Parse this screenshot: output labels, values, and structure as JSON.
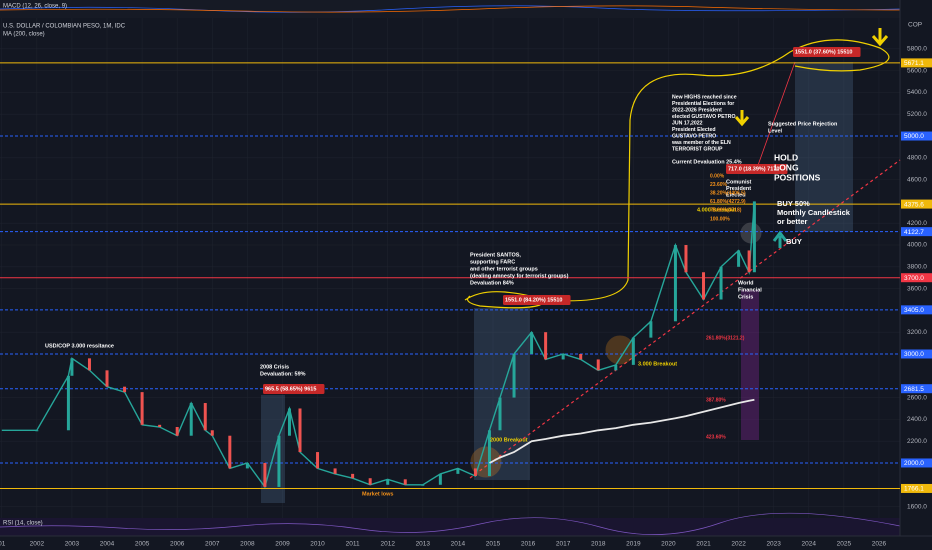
{
  "header": {
    "macd": "MACD (12, 26, close, 9)",
    "symbol": "U.S. DOLLAR / COLOMBIAN PESO, 1M, IDC",
    "rsi": "RSI (14, close)",
    "currency": "COP"
  },
  "chart_data": {
    "type": "line",
    "x": [
      2001.0,
      2002.0,
      2002.9,
      2003.0,
      2003.5,
      2004.0,
      2004.5,
      2005.0,
      2005.5,
      2006.0,
      2006.4,
      2006.8,
      2007.0,
      2007.5,
      2008.0,
      2008.5,
      2008.9,
      2009.2,
      2009.5,
      2010.0,
      2010.5,
      2011.0,
      2011.5,
      2012.0,
      2012.5,
      2013.0,
      2013.5,
      2014.0,
      2014.5,
      2014.9,
      2015.2,
      2015.6,
      2016.1,
      2016.5,
      2017.0,
      2017.5,
      2018.0,
      2018.5,
      2019.0,
      2019.5,
      2020.2,
      2020.5,
      2021.0,
      2021.5,
      2022.0,
      2022.3,
      2022.45
    ],
    "series": [
      {
        "name": "U.S. DOLLAR / COLOMBIAN PESO, 1M, IDC",
        "color": "#26a69a",
        "values": [
          2300,
          2300,
          2800,
          2960,
          2850,
          2700,
          2650,
          2350,
          2330,
          2250,
          2550,
          2300,
          2250,
          1950,
          2000,
          1780,
          2250,
          2500,
          2100,
          1950,
          1900,
          1860,
          1800,
          1850,
          1800,
          1800,
          1900,
          1950,
          1880,
          2300,
          2600,
          3000,
          3200,
          2950,
          3000,
          2950,
          2850,
          2900,
          3150,
          3300,
          4000,
          3750,
          3500,
          3800,
          3950,
          3750,
          4400
        ]
      },
      {
        "name": "MA (200, close)",
        "color": "#e8e8e8",
        "values": [
          null,
          null,
          null,
          null,
          null,
          null,
          null,
          null,
          null,
          null,
          null,
          null,
          null,
          null,
          null,
          null,
          null,
          null,
          null,
          null,
          null,
          null,
          null,
          null,
          null,
          null,
          null,
          null,
          null,
          2000,
          2050,
          2100,
          2200,
          2220,
          2250,
          2270,
          2300,
          2320,
          2350,
          2370,
          2410,
          2430,
          2470,
          2510,
          2550,
          2570,
          2580
        ]
      }
    ],
    "xlim": [
      2000.95,
      2026.6
    ],
    "xticks": [
      {
        "value": 2001,
        "label": "01"
      },
      2002,
      2003,
      2004,
      2005,
      2006,
      2007,
      2008,
      2009,
      2010,
      2011,
      2012,
      2013,
      2014,
      2015,
      2016,
      2017,
      2018,
      2019,
      2020,
      2021,
      2022,
      2023,
      2024,
      2025,
      2026
    ],
    "ylim": [
      1495,
      6083
    ],
    "yticks": [
      {
        "value": 1600,
        "label": "1600.0"
      },
      {
        "value": 2200,
        "label": "2200.0"
      },
      {
        "value": 2400,
        "label": "2400.0"
      },
      {
        "value": 2600,
        "label": "2600.0"
      },
      {
        "value": 3200,
        "label": "3200.0"
      },
      {
        "value": 3600,
        "label": "3600.0"
      },
      {
        "value": 3800,
        "label": "3800.0"
      },
      {
        "value": 4000,
        "label": "4000.0"
      },
      {
        "value": 4200,
        "label": "4200.0"
      },
      {
        "value": 4600,
        "label": "4600.0"
      },
      {
        "value": 4800,
        "label": "4800.0"
      },
      {
        "value": 5200,
        "label": "5200.0"
      },
      {
        "value": 5400,
        "label": "5400.0"
      },
      {
        "value": 5600,
        "label": "5600.0"
      },
      {
        "value": 5800,
        "label": "5800.0"
      }
    ],
    "levels": [
      {
        "value": 5671.1,
        "label": "5671.1",
        "color": "#f0b90b"
      },
      {
        "value": 5000,
        "label": "5000.0",
        "color": "#2962ff"
      },
      {
        "value": 4375.6,
        "label": "4375.6",
        "color": "#f0b90b"
      },
      {
        "value": 4122.7,
        "label": "4122.7",
        "color": "#2962ff"
      },
      {
        "value": 3700,
        "label": "3700.0",
        "color": "#f23645"
      },
      {
        "value": 3405,
        "label": "3405.0",
        "color": "#2962ff"
      },
      {
        "value": 3000,
        "label": "3000.0",
        "color": "#2962ff"
      },
      {
        "value": 2681.5,
        "label": "2681.5",
        "color": "#2962ff"
      },
      {
        "value": 2000,
        "label": "2000.0",
        "color": "#2962ff"
      },
      {
        "value": 1766.1,
        "label": "1766.1",
        "color": "#f0b90b"
      }
    ],
    "annotations": [
      {
        "lines": [
          "USD/COP 3.000 ressitance"
        ],
        "color": "#ffffff"
      },
      {
        "lines": [
          "2008 Crisis",
          "Devaluation: 59%"
        ],
        "color": "#ffffff"
      },
      {
        "lines": [
          "965.5 (58.65%) 9615"
        ],
        "color": "#ffffff"
      },
      {
        "lines": [
          "President SANTOS,",
          "supporting FARC",
          "and other terrorist groups",
          "(dealing amnesty for terrorist groups)",
          "Devaluation 84%"
        ],
        "color": "#ffffff"
      },
      {
        "lines": [
          "1551.0 (84.20%) 15510"
        ],
        "color": "#ffffff"
      },
      {
        "lines": [
          "2000 Breakout"
        ],
        "color": "#f0d000"
      },
      {
        "lines": [
          "3.000 Breakout"
        ],
        "color": "#f0d000"
      },
      {
        "lines": [
          "Market lows"
        ],
        "color": "#f7931a"
      },
      {
        "lines": [
          "New HIGHS reached since",
          "Presidential Elections for",
          "2022-2026 President",
          "elected GUSTAVO PETRO",
          "JUN 17,2022",
          "President Elected",
          "GUSTAVO PETRO",
          "was member of the ELN",
          "TERRORIST GROUP"
        ],
        "color": "#ffffff"
      },
      {
        "lines": [
          "Current Devaluation 25.4%"
        ],
        "color": "#ffffff"
      },
      {
        "lines": [
          "Comunist",
          "President",
          "Elected"
        ],
        "color": "#ffffff"
      },
      {
        "lines": [
          "4.000 Breakout"
        ],
        "color": "#f0d000"
      },
      {
        "lines": [
          "717.0 (18.39%) 7170"
        ],
        "color": "#ffffff"
      },
      {
        "lines": [
          "HOLD",
          "LONG",
          "POSITIONS"
        ],
        "color": "#ffffff"
      },
      {
        "lines": [
          "BUY 50%",
          "Monthly Candlestick",
          "or better"
        ],
        "color": "#ffffff"
      },
      {
        "lines": [
          "BUY"
        ],
        "color": "#ffffff"
      },
      {
        "lines": [
          "World",
          "Financial",
          "Crisis"
        ],
        "color": "#ffffff"
      },
      {
        "lines": [
          "Suggested Price Rejection",
          "Level"
        ],
        "color": "#ffffff"
      },
      {
        "lines": [
          "1551.0 (37.60%) 15510"
        ],
        "color": "#ffffff"
      },
      {
        "lines": [
          "0.00%",
          "23.60%",
          "38.20%(4406.5)",
          "61.80%(4272.9)",
          "78.60%(3718)",
          "100.00%"
        ],
        "color": "#f7931a"
      },
      {
        "lines": [
          "261.80%(3121.2)"
        ],
        "color": "#f23645"
      },
      {
        "lines": [
          "387.80%",
          "423.60%"
        ],
        "color": "#f23645"
      }
    ]
  }
}
